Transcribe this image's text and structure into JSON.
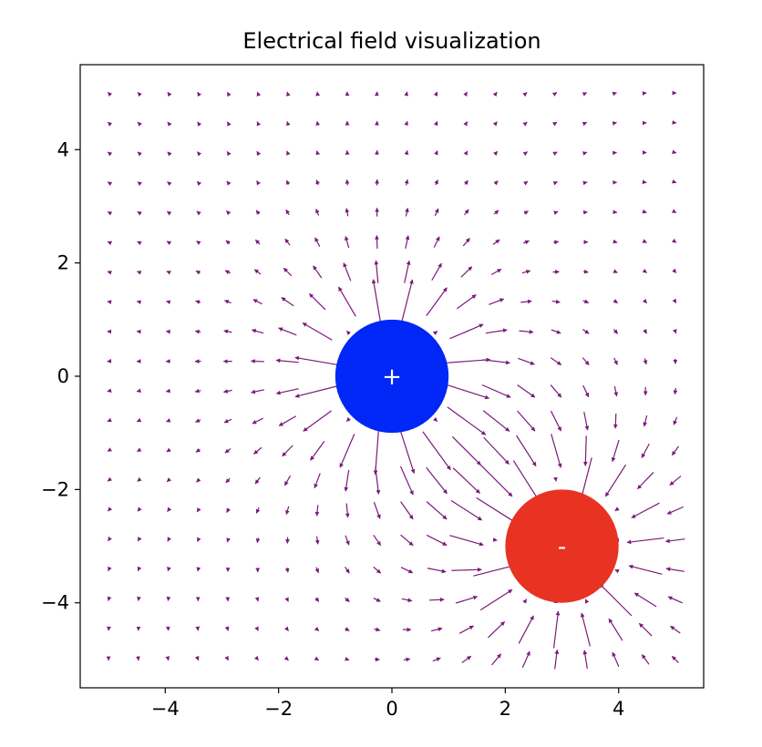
{
  "chart_data": {
    "type": "quiver",
    "title": "Electrical field visualization",
    "xlabel": "",
    "ylabel": "",
    "xlim": [
      -5.5,
      5.5
    ],
    "ylim": [
      -5.5,
      5.5
    ],
    "xticks": [
      -4,
      -2,
      0,
      2,
      4
    ],
    "yticks": [
      -4,
      -2,
      0,
      2,
      4
    ],
    "xtick_labels": [
      "−4",
      "−2",
      "0",
      "2",
      "4"
    ],
    "ytick_labels": [
      "−4",
      "−2",
      "0",
      "2",
      "4"
    ],
    "grid": false,
    "arrow_color": "#7a1a7a",
    "field_grid": {
      "min": -5,
      "max": 5,
      "count": 20
    },
    "charges": [
      {
        "label": "+",
        "x": 0,
        "y": 0,
        "q": 1,
        "radius": 1,
        "color": "#0027f5"
      },
      {
        "label": "-",
        "x": 3,
        "y": -3,
        "q": -1,
        "radius": 1,
        "color": "#e83323"
      }
    ]
  }
}
